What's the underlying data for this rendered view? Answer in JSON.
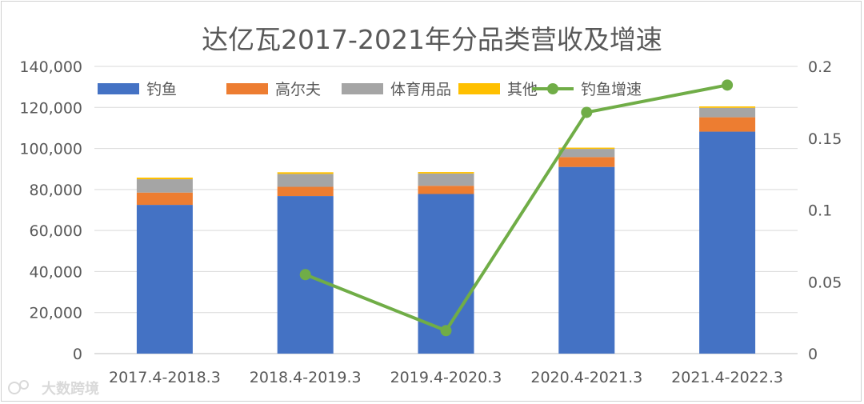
{
  "chart_data": {
    "type": "bar",
    "title": "达亿瓦2017-2021年分品类营收及增速",
    "categories": [
      "2017.4-2018.3",
      "2018.4-2019.3",
      "2019.4-2020.3",
      "2020.4-2021.3",
      "2021.4-2022.3"
    ],
    "series": [
      {
        "name": "钓鱼",
        "type": "bar",
        "axis": "left",
        "color": "#4472C4",
        "values": [
          72500,
          76800,
          77800,
          91000,
          108200
        ]
      },
      {
        "name": "高尔夫",
        "type": "bar",
        "axis": "left",
        "color": "#ED7D31",
        "values": [
          6000,
          4500,
          4000,
          4800,
          7000
        ]
      },
      {
        "name": "体育用品",
        "type": "bar",
        "axis": "left",
        "color": "#A5A5A5",
        "values": [
          6500,
          6300,
          6000,
          4000,
          4600
        ]
      },
      {
        "name": "其他",
        "type": "bar",
        "axis": "left",
        "color": "#FFC000",
        "values": [
          800,
          800,
          700,
          600,
          700
        ]
      },
      {
        "name": "钓鱼增速",
        "type": "line",
        "axis": "right",
        "color": "#70AD47",
        "values": [
          null,
          0.055,
          0.016,
          0.168,
          0.187
        ]
      }
    ],
    "ylim": [
      0,
      140000
    ],
    "y_ticks": [
      "0",
      "20,000",
      "40,000",
      "60,000",
      "80,000",
      "100,000",
      "120,000",
      "140,000"
    ],
    "y2lim": [
      0,
      0.2
    ],
    "y2_ticks": [
      "0",
      "0.05",
      "0.1",
      "0.15",
      "0.2"
    ],
    "grid": true,
    "legend_position": "top"
  },
  "watermark": {
    "text": "大数跨境",
    "icon": "brand-logo-icon"
  }
}
